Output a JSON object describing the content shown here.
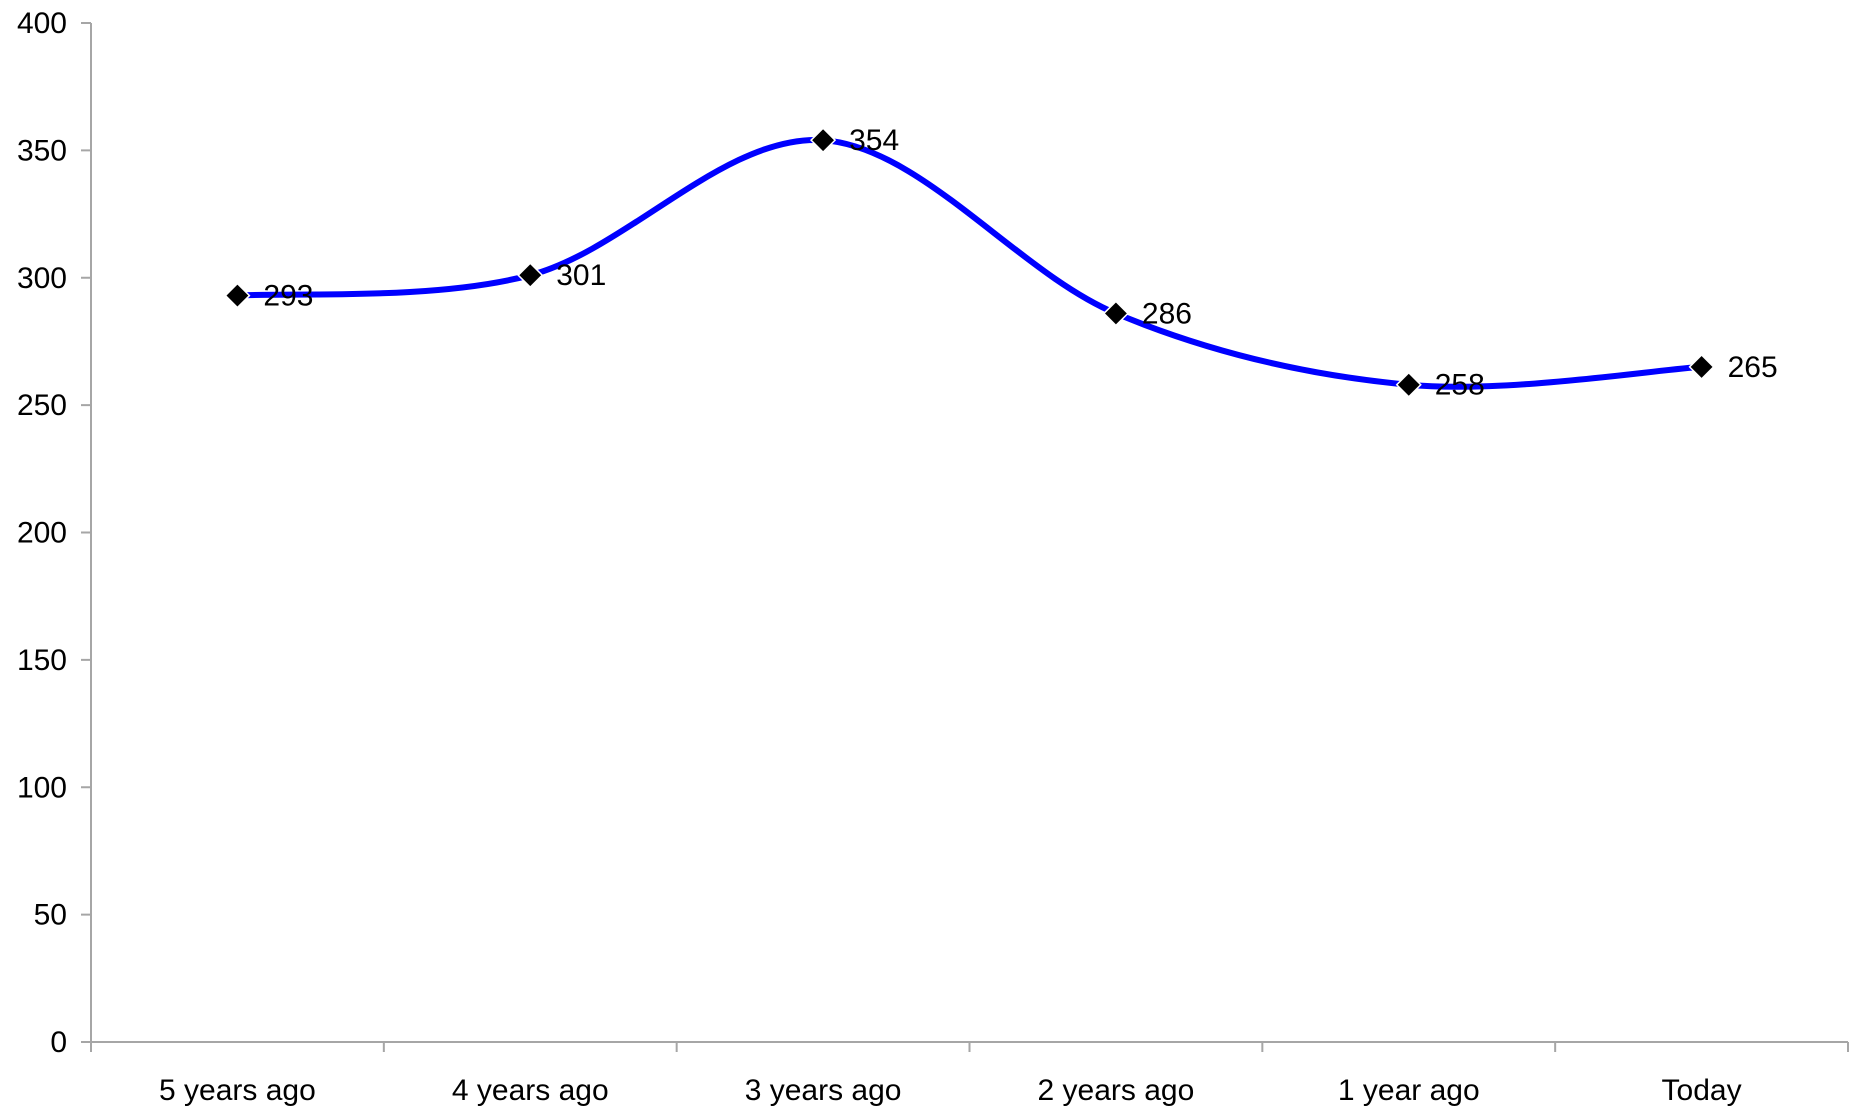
{
  "chart_data": {
    "type": "line",
    "title": "",
    "xlabel": "",
    "ylabel": "",
    "categories": [
      "5 years ago",
      "4 years ago",
      "3 years ago",
      "2 years ago",
      "1 year ago",
      "Today"
    ],
    "series": [
      {
        "values": [
          293,
          301,
          354,
          286,
          258,
          265
        ],
        "data_labels": [
          "293",
          "301",
          "354",
          "286",
          "258",
          "265"
        ],
        "line_color": "#0000ff",
        "marker": "diamond",
        "marker_color": "#000000",
        "smooth": true
      }
    ],
    "ylim": [
      0,
      400
    ],
    "yticks": [
      0,
      50,
      100,
      150,
      200,
      250,
      300,
      350,
      400
    ],
    "ytick_labels": [
      "0",
      "50",
      "100",
      "150",
      "200",
      "250",
      "300",
      "350",
      "400"
    ],
    "grid": false,
    "legend": "none",
    "axis_color": "#a6a6a6"
  }
}
